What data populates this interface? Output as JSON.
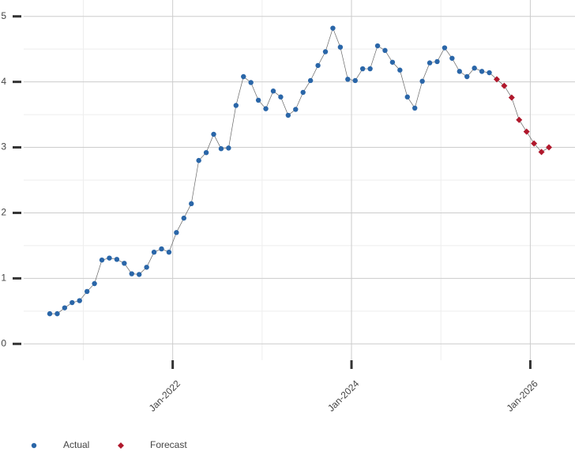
{
  "chart_data": {
    "type": "line",
    "x": [
      "2020-08",
      "2020-09",
      "2020-10",
      "2020-11",
      "2020-12",
      "2021-01",
      "2021-02",
      "2021-03",
      "2021-04",
      "2021-05",
      "2021-06",
      "2021-07",
      "2021-08",
      "2021-09",
      "2021-10",
      "2021-11",
      "2021-12",
      "2022-01",
      "2022-02",
      "2022-03",
      "2022-04",
      "2022-05",
      "2022-06",
      "2022-07",
      "2022-08",
      "2022-09",
      "2022-10",
      "2022-11",
      "2022-12",
      "2023-01",
      "2023-02",
      "2023-03",
      "2023-04",
      "2023-05",
      "2023-06",
      "2023-07",
      "2023-08",
      "2023-09",
      "2023-10",
      "2023-11",
      "2023-12",
      "2024-01",
      "2024-02",
      "2024-03",
      "2024-04",
      "2024-05",
      "2024-06",
      "2024-07",
      "2024-08",
      "2024-09",
      "2024-10",
      "2024-11",
      "2024-12",
      "2025-01",
      "2025-02",
      "2025-03",
      "2025-04",
      "2025-05",
      "2025-06",
      "2025-07",
      "2025-08",
      "2025-09",
      "2025-10",
      "2025-11",
      "2025-12",
      "2026-01",
      "2026-02",
      "2026-03"
    ],
    "series": [
      {
        "name": "Actual",
        "color": "#2a66a8",
        "values": [
          0.46,
          0.46,
          0.55,
          0.63,
          0.66,
          0.8,
          0.92,
          1.28,
          1.31,
          1.29,
          1.23,
          1.07,
          1.06,
          1.17,
          1.4,
          1.45,
          1.4,
          1.7,
          1.92,
          2.14,
          2.8,
          2.92,
          3.2,
          2.98,
          2.99,
          3.64,
          4.08,
          3.99,
          3.72,
          3.59,
          3.86,
          3.77,
          3.49,
          3.58,
          3.84,
          4.02,
          4.25,
          4.46,
          4.82,
          4.53,
          4.04,
          4.02,
          4.2,
          4.2,
          4.55,
          4.48,
          4.3,
          4.18,
          3.77,
          3.6,
          4.01,
          4.29,
          4.31,
          4.52,
          4.36,
          4.16,
          4.08,
          4.21,
          4.16,
          4.14,
          null,
          null,
          null,
          null,
          null,
          null,
          null,
          null
        ]
      },
      {
        "name": "Forecast",
        "color": "#b0182c",
        "values": [
          null,
          null,
          null,
          null,
          null,
          null,
          null,
          null,
          null,
          null,
          null,
          null,
          null,
          null,
          null,
          null,
          null,
          null,
          null,
          null,
          null,
          null,
          null,
          null,
          null,
          null,
          null,
          null,
          null,
          null,
          null,
          null,
          null,
          null,
          null,
          null,
          null,
          null,
          null,
          null,
          null,
          null,
          null,
          null,
          null,
          null,
          null,
          null,
          null,
          null,
          null,
          null,
          null,
          null,
          null,
          null,
          null,
          null,
          null,
          null,
          4.04,
          3.94,
          3.76,
          3.42,
          3.24,
          3.06,
          2.93,
          3.0
        ]
      }
    ],
    "xlim": [
      "2020-05",
      "2026-07"
    ],
    "xticks": [
      {
        "value": "2022-01",
        "label": "Jan-2022"
      },
      {
        "value": "2024-01",
        "label": "Jan-2024"
      },
      {
        "value": "2026-01",
        "label": "Jan-2026"
      }
    ],
    "ylim": [
      -0.25,
      5.25
    ],
    "yticks": [
      0,
      1,
      2,
      3,
      4,
      5
    ],
    "grid": true
  }
}
